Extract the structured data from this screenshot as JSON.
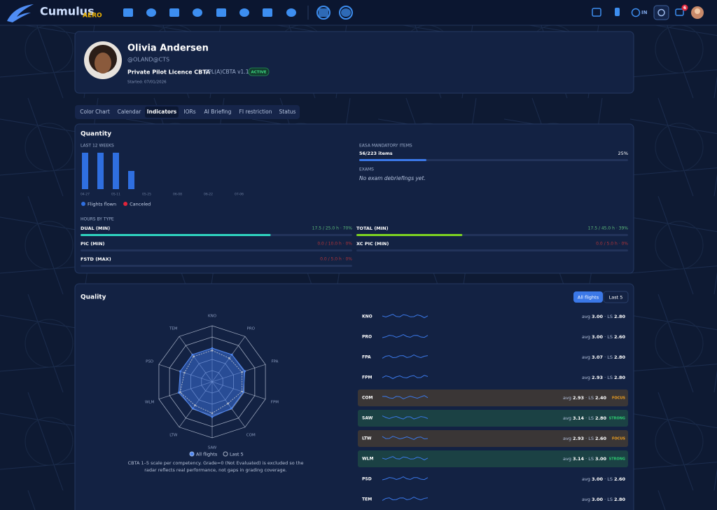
{
  "nav": {
    "brand": "Cumulus",
    "brand_suffix": "AERO",
    "clock_label": "IN",
    "notifications": "6"
  },
  "profile": {
    "name": "Olivia Andersen",
    "handle": "@OLAND@CTS",
    "program": "Private Pilot Licence CBTA",
    "program_code": "PPL(A)CBTA v1.1",
    "status": "ACTIVE",
    "started": "Started: 07/01/2026"
  },
  "tabs": [
    "Color Chart",
    "Calendar",
    "Indicators",
    "IORs",
    "AI Briefing",
    "FI restriction",
    "Status"
  ],
  "active_tab": 2,
  "quantity": {
    "title": "Quantity",
    "weekly": {
      "title": "LAST 12 WEEKS",
      "categories": [
        "04-27",
        null,
        "05-11",
        null,
        "05-25",
        null,
        "06-08",
        null,
        "06-22",
        null,
        "07-06",
        null
      ],
      "ylim": [
        0,
        4
      ],
      "series": [
        {
          "name": "Flights flown",
          "color": "#2f6fe0",
          "values": [
            4,
            4,
            4,
            2,
            0,
            0,
            0,
            0,
            0,
            0,
            0,
            0
          ]
        },
        {
          "name": "Canceled",
          "color": "#e0243a",
          "values": [
            0,
            0,
            0,
            0,
            0,
            0,
            0,
            0,
            0,
            0,
            0,
            0
          ]
        }
      ]
    },
    "mandatory": {
      "title": "EASA MANDATORY ITEMS",
      "items": "56/223 items",
      "percent": 25,
      "percent_label": "25%"
    },
    "exams": {
      "title": "EXAMS",
      "empty": "No exam debriefings yet."
    },
    "hours": {
      "title": "HOURS BY TYPE",
      "rows": [
        {
          "name": "DUAL (MIN)",
          "label": "17.5 / 25.0 h · 70%",
          "percent": 70,
          "color": "#2fd4c0"
        },
        {
          "name": "TOTAL (MIN)",
          "label": "17.5 / 45.0 h · 39%",
          "percent": 39,
          "color": "#7ed321"
        },
        {
          "name": "PIC (MIN)",
          "label": "0.0 / 10.0 h · 0%",
          "percent": 0,
          "color": "#c0392b"
        },
        {
          "name": "XC PIC (MIN)",
          "label": "0.0 / 5.0 h · 0%",
          "percent": 0,
          "color": "#c0392b"
        },
        {
          "name": "FSTD (MAX)",
          "label": "0.0 / 5.0 h · 0%",
          "percent": 0,
          "color": "#c0392b"
        }
      ]
    }
  },
  "quality": {
    "title": "Quality",
    "filters": [
      "All flights",
      "Last 5"
    ],
    "rlim": [
      0,
      5
    ],
    "legend": [
      "All flights",
      "Last 5"
    ],
    "note": "CBTA 1–5 scale per competency. Grade=0 (Not Evaluated) is excluded so the radar reflects real performance, not gaps in grading coverage.",
    "avg_prefix": "avg",
    "ls_prefix": "· LS",
    "competencies": [
      {
        "code": "KNO",
        "avg": 3,
        "avg_label": "3.00",
        "ls": 2.8,
        "ls_label": "2.80"
      },
      {
        "code": "PRO",
        "avg": 3,
        "avg_label": "3.00",
        "ls": 2.6,
        "ls_label": "2.60"
      },
      {
        "code": "FPA",
        "avg": 3.07,
        "avg_label": "3.07",
        "ls": 2.8,
        "ls_label": "2.80"
      },
      {
        "code": "FPM",
        "avg": 2.93,
        "avg_label": "2.93",
        "ls": 2.8,
        "ls_label": "2.80"
      },
      {
        "code": "COM",
        "avg": 2.93,
        "avg_label": "2.93",
        "ls": 2.4,
        "ls_label": "2.40",
        "tag": "FOCUS"
      },
      {
        "code": "SAW",
        "avg": 3.14,
        "avg_label": "3.14",
        "ls": 2.8,
        "ls_label": "2.80",
        "tag": "STRONG"
      },
      {
        "code": "LTW",
        "avg": 2.93,
        "avg_label": "2.93",
        "ls": 2.6,
        "ls_label": "2.60",
        "tag": "FOCUS"
      },
      {
        "code": "WLM",
        "avg": 3.14,
        "avg_label": "3.14",
        "ls": 3,
        "ls_label": "3.00",
        "tag": "STRONG"
      },
      {
        "code": "PSD",
        "avg": 3,
        "avg_label": "3.00",
        "ls": 2.6,
        "ls_label": "2.60"
      },
      {
        "code": "TEM",
        "avg": 3,
        "avg_label": "3.00",
        "ls": 2.8,
        "ls_label": "2.80"
      }
    ]
  }
}
